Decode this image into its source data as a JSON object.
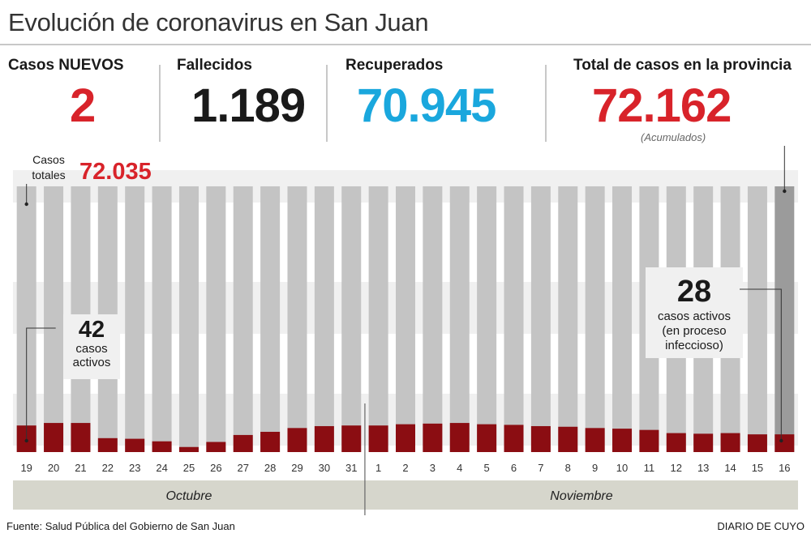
{
  "title": "Evolución de coronavirus en San Juan",
  "stats": {
    "new_label": "Casos NUEVOS",
    "new_value": "2",
    "deaths_label": "Fallecidos",
    "deaths_value": "1.189",
    "recovered_label": "Recuperados",
    "recovered_value": "70.945",
    "total_label": "Total de casos en la provincia",
    "total_value": "72.162",
    "total_note": "(Acumulados)"
  },
  "chart_data": {
    "type": "bar",
    "categories": [
      "19",
      "20",
      "21",
      "22",
      "23",
      "24",
      "25",
      "26",
      "27",
      "28",
      "29",
      "30",
      "31",
      "1",
      "2",
      "3",
      "4",
      "5",
      "6",
      "7",
      "8",
      "9",
      "10",
      "11",
      "12",
      "13",
      "14",
      "15",
      "16"
    ],
    "series": [
      {
        "name": "casos activos",
        "values": [
          42,
          46,
          46,
          22,
          21,
          17,
          8,
          16,
          27,
          32,
          38,
          41,
          42,
          42,
          44,
          45,
          46,
          44,
          43,
          41,
          40,
          38,
          37,
          35,
          30,
          29,
          30,
          28,
          28
        ]
      }
    ],
    "ylim": [
      0,
      420
    ],
    "grid": true,
    "months": [
      {
        "label": "Octubre",
        "from": "19",
        "to": "31"
      },
      {
        "label": "Noviembre",
        "from": "1",
        "to": "16"
      }
    ],
    "colors": {
      "bar_bg": "#c4c4c4",
      "bar_bg_last": "#9b9b9b",
      "active": "#8b0d12",
      "band": "#f0f0f0",
      "month_bar": "#d6d6cc"
    },
    "annotations": {
      "start_total_label": "Casos\ntotales",
      "start_total_value": "72.035",
      "start_active_value": "42",
      "start_active_label": "casos\nactivos",
      "end_active_value": "28",
      "end_active_label": "casos activos\n(en proceso\ninfeccioso)"
    }
  },
  "footer": {
    "source": "Fuente: Salud Pública del Gobierno de San Juan",
    "brand": "DIARIO DE CUYO"
  }
}
